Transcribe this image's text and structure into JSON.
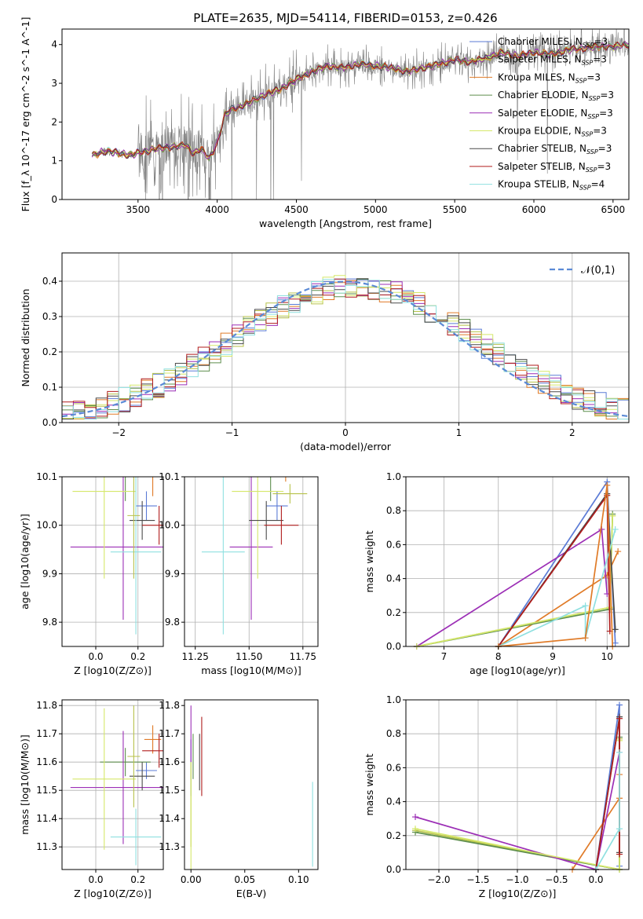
{
  "figure": {
    "title": "PLATE=2635, MJD=54114, FIBERID=0153, z=0.426"
  },
  "models": [
    {
      "name": "Chabrier MILES",
      "color": "#5b7bd6",
      "nssp": "3"
    },
    {
      "name": "Salpeter MILES",
      "color": "#b7c24a",
      "nssp": "3"
    },
    {
      "name": "Kroupa MILES",
      "color": "#e07b28",
      "nssp": "3"
    },
    {
      "name": "Chabrier ELODIE",
      "color": "#5f8f4e",
      "nssp": "3"
    },
    {
      "name": "Salpeter ELODIE",
      "color": "#9c2fb6",
      "nssp": "3"
    },
    {
      "name": "Kroupa ELODIE",
      "color": "#d5e86a",
      "nssp": "3"
    },
    {
      "name": "Chabrier STELIB",
      "color": "#4a4a4a",
      "nssp": "3"
    },
    {
      "name": "Salpeter STELIB",
      "color": "#b01c1c",
      "nssp": "3"
    },
    {
      "name": "Kroupa STELIB",
      "color": "#8fe0e0",
      "nssp": "4"
    }
  ],
  "chart_data": [
    {
      "id": "spectrum",
      "type": "line",
      "xlabel": "wavelength [Angstrom, rest frame]",
      "ylabel": "Flux [f_λ 10^-17 erg cm^-2 s^-1 A^-1]",
      "xlim": [
        3020,
        6600
      ],
      "ylim": [
        0,
        4.4
      ],
      "xticks": [
        3500,
        4000,
        4500,
        5000,
        5500,
        6000,
        6500
      ],
      "yticks": [
        0,
        1,
        2,
        3,
        4
      ],
      "model_curve": {
        "x": [
          3210,
          3300,
          3400,
          3450,
          3500,
          3600,
          3700,
          3800,
          3850,
          3900,
          3950,
          4000,
          4050,
          4100,
          4150,
          4200,
          4300,
          4400,
          4500,
          4600,
          4700,
          4800,
          4900,
          5000,
          5100,
          5200,
          5300,
          5400,
          5500,
          5600,
          5700,
          5800,
          5900,
          6000,
          6100,
          6200,
          6300,
          6400,
          6500,
          6600
        ],
        "y": [
          1.15,
          1.25,
          1.18,
          1.15,
          1.2,
          1.3,
          1.35,
          1.4,
          1.2,
          1.3,
          1.05,
          1.45,
          2.2,
          2.35,
          2.4,
          2.5,
          2.7,
          2.85,
          3.1,
          3.3,
          3.45,
          3.4,
          3.5,
          3.45,
          3.4,
          3.3,
          3.4,
          3.5,
          3.6,
          3.55,
          3.65,
          3.8,
          3.7,
          3.8,
          3.75,
          3.85,
          3.9,
          3.95,
          3.95,
          4.0
        ]
      },
      "data_note": "observed spectrum (grey) scatters around model"
    },
    {
      "id": "residuals",
      "type": "histogram",
      "xlabel": "(data-model)/error",
      "ylabel": "Normed distribution",
      "xlim": [
        -2.5,
        2.5
      ],
      "ylim": [
        0,
        0.48
      ],
      "xticks": [
        -2,
        -1,
        0,
        1,
        2
      ],
      "yticks": [
        0.0,
        0.1,
        0.2,
        0.3,
        0.4
      ],
      "legend": "𝒩(0,1)",
      "legend_position": "top-right",
      "bin_width": 0.1
    },
    {
      "id": "age_vs_Z",
      "type": "scatter",
      "xlabel": "Z [log10(Z/Z⊙)]",
      "ylabel": "age [log10(age/yr)]",
      "xlim": [
        -0.16,
        0.32
      ],
      "ylim": [
        9.75,
        10.1
      ],
      "xticks": [
        0.0,
        0.2
      ],
      "yticks": [
        9.8,
        9.9,
        10.0,
        10.1
      ]
    },
    {
      "id": "age_vs_mass",
      "type": "scatter",
      "xlabel": "mass [log10(M/M⊙)]",
      "ylabel": "",
      "xlim": [
        11.2,
        11.82
      ],
      "ylim": [
        9.75,
        10.1
      ],
      "xticks": [
        11.25,
        11.5,
        11.75
      ],
      "yticks": [
        9.8,
        9.9,
        10.0,
        10.1
      ]
    },
    {
      "id": "massweight_vs_age",
      "type": "line",
      "xlabel": "age [log10(age/yr)]",
      "ylabel": "mass weight",
      "xlim": [
        6.3,
        10.4
      ],
      "ylim": [
        0,
        1.0
      ],
      "xticks": [
        7,
        8,
        9,
        10
      ],
      "yticks": [
        0.0,
        0.2,
        0.4,
        0.6,
        0.8,
        1.0
      ]
    },
    {
      "id": "mass_vs_Z",
      "type": "scatter",
      "xlabel": "Z [log10(Z/Z⊙)]",
      "ylabel": "mass [log10(M/M⊙)]",
      "xlim": [
        -0.16,
        0.32
      ],
      "ylim": [
        11.22,
        11.82
      ],
      "xticks": [
        0.0,
        0.2
      ],
      "yticks": [
        11.3,
        11.4,
        11.5,
        11.6,
        11.7,
        11.8
      ]
    },
    {
      "id": "mass_vs_EBV",
      "type": "scatter",
      "xlabel": "E(B-V)",
      "ylabel": "",
      "xlim": [
        -0.006,
        0.118
      ],
      "ylim": [
        11.22,
        11.82
      ],
      "xticks": [
        0.0,
        0.05,
        0.1
      ],
      "yticks": [
        11.3,
        11.4,
        11.5,
        11.6,
        11.7,
        11.8
      ]
    },
    {
      "id": "massweight_vs_Z",
      "type": "line",
      "xlabel": "Z [log10(Z/Z⊙)]",
      "ylabel": "mass weight",
      "xlim": [
        -2.42,
        0.42
      ],
      "ylim": [
        0,
        1.0
      ],
      "xticks": [
        -2.0,
        -1.5,
        -1.0,
        -0.5,
        0.0
      ],
      "yticks": [
        0.0,
        0.2,
        0.4,
        0.6,
        0.8,
        1.0
      ]
    }
  ],
  "points": {
    "age_Z": [
      {
        "m": 0,
        "x": 0.24,
        "xe": 0.05,
        "y": 10.04,
        "ye": 0.03
      },
      {
        "m": 2,
        "x": 0.27,
        "xe": 0.04,
        "y": 10.1,
        "ye": 0.04
      },
      {
        "m": 3,
        "x": 0.14,
        "xe": 0.12,
        "y": 10.1,
        "ye": 0.05
      },
      {
        "m": 4,
        "x": 0.13,
        "xe": 0.25,
        "y": 9.955,
        "ye": 0.15
      },
      {
        "m": 5,
        "x": 0.04,
        "xe": 0.15,
        "y": 10.07,
        "ye": 0.18
      },
      {
        "m": 6,
        "x": 0.22,
        "xe": 0.06,
        "y": 10.01,
        "ye": 0.04
      },
      {
        "m": 7,
        "x": 0.3,
        "xe": 0.08,
        "y": 10.0,
        "ye": 0.04
      },
      {
        "m": 8,
        "x": 0.19,
        "xe": 0.12,
        "y": 9.945,
        "ye": 0.17
      },
      {
        "m": 1,
        "x": 0.18,
        "xe": 0.03,
        "y": 10.02,
        "ye": 0.13
      }
    ],
    "age_mass": [
      {
        "m": 0,
        "x": 11.63,
        "xe": 0.05,
        "y": 10.04,
        "ye": 0.03
      },
      {
        "m": 2,
        "x": 11.67,
        "xe": 0.05,
        "y": 10.13,
        "ye": 0.04
      },
      {
        "m": 3,
        "x": 11.6,
        "xe": 0.1,
        "y": 10.1,
        "ye": 0.05
      },
      {
        "m": 4,
        "x": 11.51,
        "xe": 0.1,
        "y": 9.955,
        "ye": 0.15
      },
      {
        "m": 5,
        "x": 11.54,
        "xe": 0.12,
        "y": 10.07,
        "ye": 0.18
      },
      {
        "m": 6,
        "x": 11.58,
        "xe": 0.08,
        "y": 10.01,
        "ye": 0.04
      },
      {
        "m": 7,
        "x": 11.65,
        "xe": 0.08,
        "y": 10.0,
        "ye": 0.04
      },
      {
        "m": 8,
        "x": 11.38,
        "xe": 0.1,
        "y": 9.945,
        "ye": 0.17
      },
      {
        "m": 1,
        "x": 11.69,
        "xe": 0.08,
        "y": 10.065,
        "ye": 0.02
      }
    ],
    "mass_Z": [
      {
        "m": 0,
        "x": 0.24,
        "xe": 0.05,
        "y": 11.57,
        "ye": 0.03
      },
      {
        "m": 2,
        "x": 0.27,
        "xe": 0.04,
        "y": 11.68,
        "ye": 0.05
      },
      {
        "m": 3,
        "x": 0.14,
        "xe": 0.12,
        "y": 11.6,
        "ye": 0.05
      },
      {
        "m": 4,
        "x": 0.13,
        "xe": 0.25,
        "y": 11.51,
        "ye": 0.2
      },
      {
        "m": 5,
        "x": 0.04,
        "xe": 0.15,
        "y": 11.54,
        "ye": 0.25
      },
      {
        "m": 6,
        "x": 0.22,
        "xe": 0.06,
        "y": 11.55,
        "ye": 0.05
      },
      {
        "m": 7,
        "x": 0.3,
        "xe": 0.08,
        "y": 11.64,
        "ye": 0.06
      },
      {
        "m": 8,
        "x": 0.19,
        "xe": 0.12,
        "y": 11.335,
        "ye": 0.1
      },
      {
        "m": 1,
        "x": 0.18,
        "xe": 0.03,
        "y": 11.62,
        "ye": 0.18
      }
    ],
    "mass_ebv": [
      {
        "m": 0,
        "x": 0.0,
        "y": 11.58,
        "ye": 0.1
      },
      {
        "m": 1,
        "x": 0.0,
        "y": 11.45,
        "ye": 0.15
      },
      {
        "m": 3,
        "x": 0.002,
        "y": 11.62,
        "ye": 0.08
      },
      {
        "m": 4,
        "x": 0.0,
        "y": 11.7,
        "ye": 0.1
      },
      {
        "m": 5,
        "x": 0.0,
        "y": 11.4,
        "ye": 0.2
      },
      {
        "m": 6,
        "x": 0.008,
        "y": 11.6,
        "ye": 0.1
      },
      {
        "m": 7,
        "x": 0.01,
        "y": 11.62,
        "ye": 0.14
      },
      {
        "m": 8,
        "x": 0.113,
        "y": 11.38,
        "ye": 0.15
      }
    ],
    "mw_age": [
      {
        "m": 0,
        "x": [
          8.0,
          10.0,
          10.15
        ],
        "y": [
          0.0,
          0.97,
          0.02
        ]
      },
      {
        "m": 1,
        "x": [
          6.5,
          10.05,
          10.1
        ],
        "y": [
          0.0,
          0.23,
          0.77
        ]
      },
      {
        "m": 2,
        "x": [
          8.0,
          10.0,
          10.2
        ],
        "y": [
          0.0,
          0.42,
          0.56
        ]
      },
      {
        "m": 3,
        "x": [
          6.5,
          10.05,
          10.1
        ],
        "y": [
          0.0,
          0.22,
          0.78
        ]
      },
      {
        "m": 4,
        "x": [
          6.5,
          9.9,
          10.0
        ],
        "y": [
          0.0,
          0.69,
          0.31
        ]
      },
      {
        "m": 5,
        "x": [
          6.5,
          10.05,
          10.1
        ],
        "y": [
          0.0,
          0.23,
          0.77
        ]
      },
      {
        "m": 6,
        "x": [
          8.0,
          10.0,
          10.15
        ],
        "y": [
          0.0,
          0.9,
          0.1
        ]
      },
      {
        "m": 7,
        "x": [
          8.0,
          10.0,
          10.05
        ],
        "y": [
          0.0,
          0.89,
          0.09
        ]
      },
      {
        "m": 8,
        "x": [
          8.0,
          9.6,
          9.6,
          10.15
        ],
        "y": [
          0.0,
          0.24,
          0.05,
          0.69
        ]
      },
      {
        "m": 2,
        "x": [
          8.0,
          9.6,
          10.0,
          10.1
        ],
        "y": [
          0.0,
          0.05,
          0.95,
          0.0
        ]
      }
    ],
    "mw_Z": [
      {
        "m": 0,
        "x": [
          0.0,
          0.3,
          0.3
        ],
        "y": [
          0.0,
          0.97,
          0.02
        ]
      },
      {
        "m": 1,
        "x": [
          -2.3,
          0.3,
          0.3
        ],
        "y": [
          0.23,
          0.0,
          0.77
        ]
      },
      {
        "m": 2,
        "x": [
          -0.3,
          0.3,
          0.3
        ],
        "y": [
          0.0,
          0.42,
          0.56
        ]
      },
      {
        "m": 3,
        "x": [
          -2.3,
          0.3,
          0.3
        ],
        "y": [
          0.22,
          0.0,
          0.78
        ]
      },
      {
        "m": 4,
        "x": [
          -2.3,
          0.0,
          0.3
        ],
        "y": [
          0.31,
          0.0,
          0.69
        ]
      },
      {
        "m": 5,
        "x": [
          -2.3,
          0.3,
          0.3
        ],
        "y": [
          0.24,
          0.0,
          0.76
        ]
      },
      {
        "m": 6,
        "x": [
          0.0,
          0.3,
          0.3
        ],
        "y": [
          0.0,
          0.9,
          0.1
        ]
      },
      {
        "m": 7,
        "x": [
          0.0,
          0.3,
          0.3
        ],
        "y": [
          0.0,
          0.89,
          0.09
        ]
      },
      {
        "m": 8,
        "x": [
          0.0,
          0.3,
          0.3
        ],
        "y": [
          0.0,
          0.24,
          0.69
        ]
      }
    ]
  }
}
